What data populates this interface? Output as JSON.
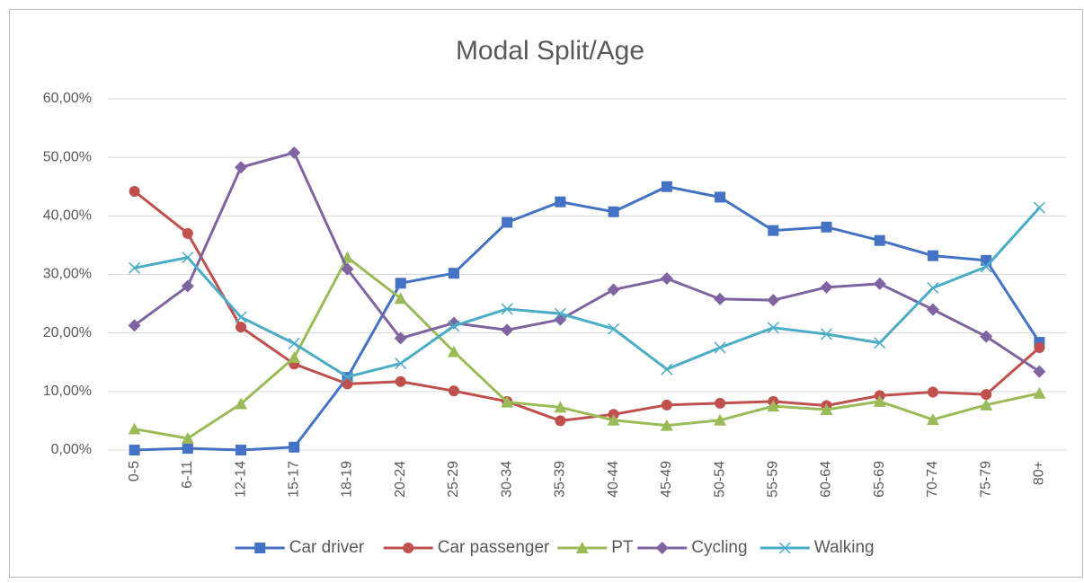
{
  "chart_data": {
    "type": "line",
    "title": "Modal Split/Age",
    "categories": [
      "0-5",
      "6-11",
      "12-14",
      "15-17",
      "18-19",
      "20-24",
      "25-29",
      "30-34",
      "35-39",
      "40-44",
      "45-49",
      "50-54",
      "55-59",
      "60-64",
      "65-69",
      "70-74",
      "75-79",
      "80+"
    ],
    "ylim": [
      0,
      60
    ],
    "yticks": [
      {
        "value": 0,
        "label": "0,00%"
      },
      {
        "value": 10,
        "label": "10,00%"
      },
      {
        "value": 20,
        "label": "20,00%"
      },
      {
        "value": 30,
        "label": "30,00%"
      },
      {
        "value": 40,
        "label": "40,00%"
      },
      {
        "value": 50,
        "label": "50,00%"
      },
      {
        "value": 60,
        "label": "60,00%"
      }
    ],
    "grid": true,
    "legend": "bottom",
    "series": [
      {
        "name": "Car driver",
        "color": "#4472c4",
        "marker": "square",
        "values": [
          0,
          0.3,
          0,
          0.5,
          12.4,
          28.5,
          30.2,
          38.9,
          42.4,
          40.7,
          45,
          43.2,
          37.5,
          38.1,
          35.8,
          33.2,
          32.4,
          18.4
        ]
      },
      {
        "name": "Car passenger",
        "color": "#c0504d",
        "marker": "circle",
        "values": [
          44.2,
          37,
          21,
          14.7,
          11.3,
          11.7,
          10.1,
          8.3,
          5,
          6.1,
          7.7,
          8,
          8.3,
          7.6,
          9.3,
          9.9,
          9.5,
          17.5
        ]
      },
      {
        "name": "PT",
        "color": "#9bbb59",
        "marker": "triangle",
        "values": [
          3.6,
          2,
          7.9,
          15.8,
          32.9,
          25.9,
          16.8,
          8.2,
          7.3,
          5.1,
          4.2,
          5.1,
          7.5,
          6.9,
          8.3,
          5.2,
          7.7,
          9.7
        ]
      },
      {
        "name": "Cycling",
        "color": "#8064a2",
        "marker": "diamond",
        "values": [
          21.3,
          28,
          48.3,
          50.8,
          30.9,
          19.1,
          21.7,
          20.5,
          22.3,
          27.4,
          29.3,
          25.8,
          25.6,
          27.8,
          28.4,
          24,
          19.4,
          13.4
        ]
      },
      {
        "name": "Walking",
        "color": "#4bacc6",
        "marker": "x",
        "values": [
          31.1,
          32.9,
          22.7,
          18.2,
          12.5,
          14.8,
          21.2,
          24.1,
          23.3,
          20.7,
          13.8,
          17.5,
          20.9,
          19.8,
          18.3,
          27.7,
          31.3,
          41.4
        ]
      }
    ]
  }
}
